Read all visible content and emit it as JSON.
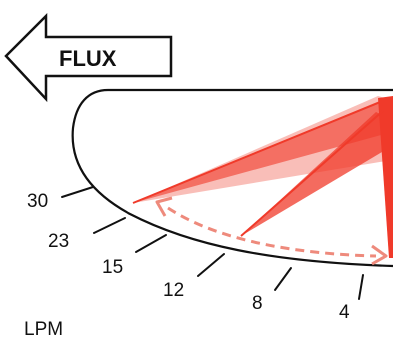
{
  "arrow": {
    "label": "FLUX",
    "direction": "left"
  },
  "scale_labels": [
    "30",
    "23",
    "15",
    "12",
    "8",
    "4"
  ],
  "unit_label": "LPM",
  "colors": {
    "outline": "#111111",
    "beam": "#f03a2a",
    "beam_light": "#f7a39a",
    "dashed_arc": "#ee8a7c"
  }
}
